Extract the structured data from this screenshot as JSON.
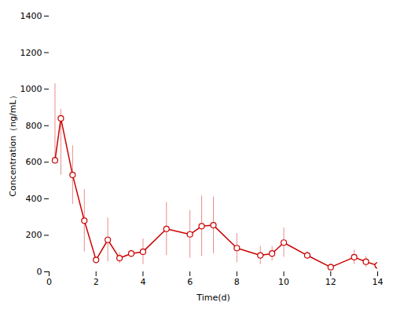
{
  "chart_data": {
    "type": "line",
    "xlabel": "Time(d)",
    "ylabel": "Concentration（ng/mL）",
    "x": [
      0.25,
      0.5,
      1.0,
      1.5,
      2.0,
      2.5,
      3.0,
      3.5,
      4.0,
      5.0,
      6.0,
      6.5,
      7.0,
      8.0,
      9.0,
      9.5,
      10.0,
      11.0,
      12.0,
      13.0,
      13.5,
      14.0
    ],
    "values": [
      610,
      840,
      530,
      280,
      65,
      175,
      75,
      100,
      110,
      235,
      205,
      250,
      255,
      130,
      90,
      100,
      160,
      90,
      25,
      80,
      55,
      35
    ],
    "yerr_upper": [
      420,
      50,
      160,
      170,
      15,
      120,
      30,
      20,
      70,
      145,
      130,
      165,
      155,
      80,
      50,
      40,
      80,
      20,
      20,
      40,
      30,
      85
    ],
    "yerr_lower": [
      0,
      310,
      160,
      170,
      15,
      120,
      30,
      20,
      70,
      145,
      130,
      165,
      155,
      80,
      50,
      40,
      80,
      20,
      20,
      40,
      30,
      35
    ],
    "color": "#cc0000",
    "marker": "circle",
    "line_style": "solid",
    "xlim": [
      0,
      14
    ],
    "ylim": [
      0,
      1400
    ],
    "xticks": [
      0,
      2,
      4,
      6,
      8,
      10,
      12,
      14
    ],
    "yticks": [
      0,
      200,
      400,
      600,
      800,
      1000,
      1200,
      1400
    ],
    "grid": false
  }
}
